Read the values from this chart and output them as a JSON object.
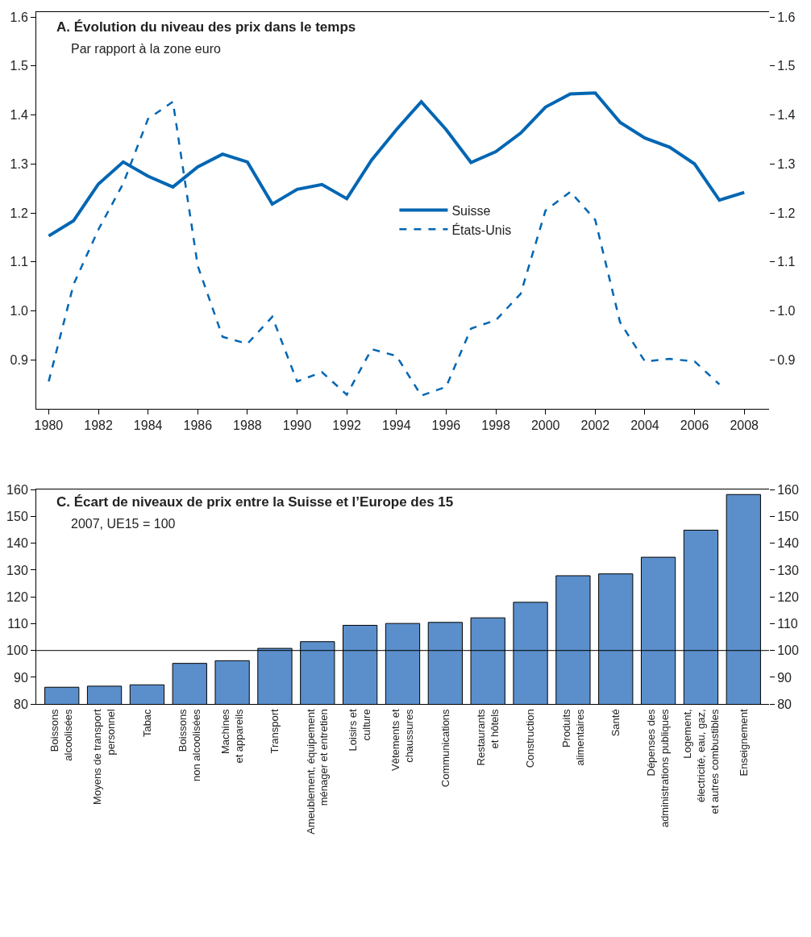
{
  "chart_data": [
    {
      "type": "line",
      "title": "A. Évolution du niveau des prix dans le temps",
      "subtitle": "Par rapport à la zone euro",
      "x": [
        1980,
        1981,
        1982,
        1983,
        1984,
        1985,
        1986,
        1987,
        1988,
        1989,
        1990,
        1991,
        1992,
        1993,
        1994,
        1995,
        1996,
        1997,
        1998,
        1999,
        2000,
        2001,
        2002,
        2003,
        2004,
        2005,
        2006,
        2007,
        2008
      ],
      "series": [
        {
          "name": "Suisse",
          "color": "#0066b3",
          "line_style": "solid",
          "values": [
            1.153,
            1.184,
            1.259,
            1.304,
            1.275,
            1.253,
            1.294,
            1.32,
            1.304,
            1.218,
            1.248,
            1.258,
            1.229,
            1.308,
            1.37,
            1.427,
            1.37,
            1.303,
            1.325,
            1.363,
            1.416,
            1.443,
            1.445,
            1.385,
            1.353,
            1.334,
            1.3,
            1.226,
            1.242
          ]
        },
        {
          "name": "États-Unis",
          "color": "#0066b3",
          "line_style": "dashed",
          "values": [
            0.856,
            1.054,
            1.166,
            1.26,
            1.392,
            1.427,
            1.092,
            0.947,
            0.933,
            0.988,
            0.856,
            0.875,
            0.829,
            0.922,
            0.908,
            0.827,
            0.845,
            0.964,
            0.981,
            1.035,
            1.205,
            1.243,
            1.186,
            0.977,
            0.897,
            0.902,
            0.897,
            0.85,
            null
          ]
        }
      ],
      "xlim": [
        1979.5,
        2009
      ],
      "xticks": [
        1980,
        1982,
        1984,
        1986,
        1988,
        1990,
        1992,
        1994,
        1996,
        1998,
        2000,
        2002,
        2004,
        2006,
        2008
      ],
      "ylim": [
        0.8,
        1.61
      ],
      "yticks": [
        0.9,
        {
          "value": 1.0,
          "label": "1.0"
        },
        1.1,
        1.2,
        1.3,
        1.4,
        1.5,
        1.6
      ],
      "y2lim": [
        0.8,
        1.61
      ],
      "y2ticks": [
        0.9,
        {
          "value": 1.0,
          "label": "1.0"
        },
        1.1,
        1.2,
        1.3,
        1.4,
        1.5,
        1.6
      ],
      "legend": "center",
      "marker": "none"
    },
    {
      "type": "bar",
      "title": "C. Écart de niveaux de prix entre la Suisse et l’Europe des 15",
      "subtitle": "2007, UE15 = 100",
      "categories": [
        "Boissons\nalcoolisées",
        "Moyens de transport\npersonnel",
        "Tabac",
        "Boissons\nnon alcoolisées",
        "Machines\net appareils",
        "Transport",
        "Ameublement, équipement\nménager et entretien",
        "Loisirs et\nculture",
        "Vêtements et\nchaussures",
        "Communications",
        "Restaurants\net hôtels",
        "Construction",
        "Produits\nalimentaires",
        "Santé",
        "Dépenses des\nadministrations publiques",
        "Logement,\nélectricité, eau, gaz,\net autres combustibles",
        "Enseignement"
      ],
      "values": [
        86.3,
        86.7,
        87.2,
        95.2,
        96.2,
        100.8,
        103.3,
        109.4,
        110.1,
        110.5,
        112.2,
        118.0,
        127.9,
        128.6,
        134.8,
        144.9,
        158.2
      ],
      "color": "#5b8fcb",
      "ylim": [
        80,
        160
      ],
      "yticks": [
        80,
        90,
        100,
        110,
        120,
        130,
        140,
        150,
        160
      ],
      "y2lim": [
        80,
        160
      ],
      "y2ticks": [
        80,
        90,
        100,
        110,
        120,
        130,
        140,
        150,
        160
      ],
      "ref_lines": [
        {
          "axis": "y",
          "value": 100,
          "color": "#000000"
        }
      ],
      "legend": false
    }
  ]
}
